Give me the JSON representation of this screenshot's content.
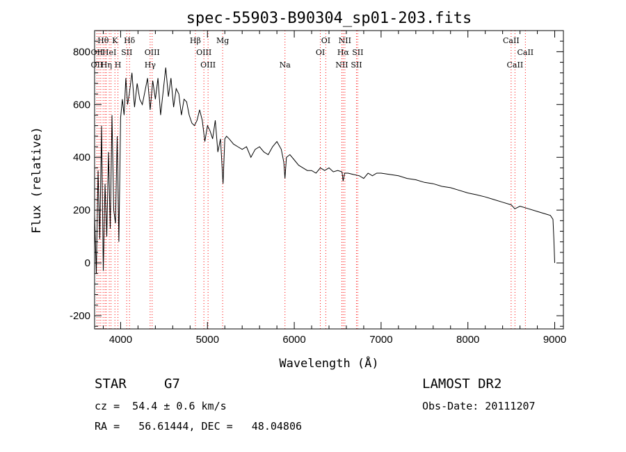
{
  "chart_data": {
    "type": "line",
    "title": "spec-55903-B90304_sp01-203.fits",
    "xlabel": "Wavelength (Å)",
    "ylabel": "Flux (relative)",
    "xlim": [
      3700,
      9100
    ],
    "ylim": [
      -250,
      880
    ],
    "x_ticks": [
      4000,
      5000,
      6000,
      7000,
      8000,
      9000
    ],
    "y_ticks": [
      -200,
      0,
      200,
      400,
      600,
      800
    ],
    "grid": false,
    "series": [
      {
        "x": [
          3700,
          3720,
          3740,
          3760,
          3780,
          3800,
          3820,
          3840,
          3860,
          3880,
          3900,
          3920,
          3940,
          3960,
          3980,
          4000,
          4020,
          4040,
          4060,
          4080,
          4100,
          4130,
          4160,
          4190,
          4220,
          4250,
          4280,
          4310,
          4340,
          4370,
          4400,
          4430,
          4460,
          4490,
          4520,
          4550,
          4580,
          4610,
          4640,
          4670,
          4700,
          4730,
          4760,
          4790,
          4820,
          4850,
          4880,
          4910,
          4940,
          4970,
          5000,
          5030,
          5060,
          5090,
          5120,
          5150,
          5180,
          5200,
          5220,
          5250,
          5300,
          5350,
          5400,
          5450,
          5500,
          5550,
          5600,
          5650,
          5700,
          5750,
          5800,
          5850,
          5880,
          5893,
          5910,
          5950,
          6000,
          6050,
          6100,
          6150,
          6200,
          6250,
          6300,
          6350,
          6400,
          6450,
          6500,
          6550,
          6563,
          6580,
          6620,
          6680,
          6750,
          6800,
          6850,
          6900,
          6950,
          7000,
          7100,
          7200,
          7300,
          7400,
          7500,
          7600,
          7700,
          7800,
          7900,
          8000,
          8100,
          8200,
          8300,
          8400,
          8500,
          8540,
          8600,
          8700,
          8800,
          8900,
          8950,
          8980,
          8990,
          9000
        ],
        "y": [
          180,
          -40,
          350,
          90,
          520,
          -30,
          300,
          100,
          420,
          130,
          560,
          200,
          150,
          480,
          80,
          550,
          620,
          560,
          700,
          600,
          640,
          720,
          590,
          680,
          620,
          600,
          650,
          700,
          580,
          690,
          620,
          700,
          560,
          650,
          740,
          630,
          700,
          590,
          660,
          640,
          560,
          620,
          610,
          560,
          530,
          520,
          540,
          580,
          540,
          460,
          520,
          500,
          470,
          540,
          420,
          470,
          300,
          470,
          480,
          470,
          450,
          440,
          430,
          440,
          400,
          430,
          440,
          420,
          410,
          440,
          460,
          430,
          380,
          320,
          400,
          410,
          390,
          370,
          360,
          350,
          350,
          340,
          360,
          350,
          360,
          345,
          350,
          345,
          310,
          340,
          340,
          335,
          330,
          320,
          340,
          330,
          340,
          340,
          335,
          330,
          320,
          315,
          305,
          300,
          290,
          285,
          275,
          265,
          258,
          250,
          240,
          230,
          220,
          205,
          215,
          205,
          195,
          185,
          180,
          165,
          90,
          0
        ]
      }
    ],
    "vertical_lines_x": [
      3727,
      3750,
      3771,
      3798,
      3820,
      3835,
      3869,
      3889,
      3934,
      3969,
      4070,
      4102,
      4340,
      4363,
      4861,
      4959,
      5007,
      5175,
      5893,
      6300,
      6363,
      6548,
      6563,
      6583,
      6716,
      6731,
      8498,
      8542,
      8662
    ],
    "line_labels": [
      {
        "x": 3798,
        "row": 1,
        "text": "Hθ"
      },
      {
        "x": 3934,
        "row": 1,
        "text": "K"
      },
      {
        "x": 4102,
        "row": 1,
        "text": "Hδ"
      },
      {
        "x": 3727,
        "row": 2,
        "text": "OII"
      },
      {
        "x": 3869,
        "row": 2,
        "text": "HeI"
      },
      {
        "x": 4070,
        "row": 2,
        "text": "SII"
      },
      {
        "x": 4363,
        "row": 2,
        "text": "OIII"
      },
      {
        "x": 3727,
        "row": 3,
        "text": "OII"
      },
      {
        "x": 3835,
        "row": 3,
        "text": "Hη"
      },
      {
        "x": 3969,
        "row": 3,
        "text": "H"
      },
      {
        "x": 4340,
        "row": 3,
        "text": "Hγ"
      },
      {
        "x": 4861,
        "row": 1,
        "text": "Hβ"
      },
      {
        "x": 5175,
        "row": 1,
        "text": "Mg"
      },
      {
        "x": 4959,
        "row": 2,
        "text": "OIII"
      },
      {
        "x": 5007,
        "row": 3,
        "text": "OIII"
      },
      {
        "x": 5893,
        "row": 3,
        "text": "Na"
      },
      {
        "x": 6363,
        "row": 1,
        "text": "OI"
      },
      {
        "x": 6300,
        "row": 2,
        "text": "OI"
      },
      {
        "x": 6583,
        "row": 1,
        "text": "NII"
      },
      {
        "x": 6563,
        "row": 2,
        "text": "Hα"
      },
      {
        "x": 6731,
        "row": 2,
        "text": "SII"
      },
      {
        "x": 6548,
        "row": 3,
        "text": "NII"
      },
      {
        "x": 6716,
        "row": 3,
        "text": "SII"
      },
      {
        "x": 8498,
        "row": 1,
        "text": "CaII"
      },
      {
        "x": 8662,
        "row": 2,
        "text": "CaII"
      },
      {
        "x": 8542,
        "row": 3,
        "text": "CaII"
      }
    ]
  },
  "info": {
    "object_class": "STAR",
    "subclass": "G7",
    "survey": "LAMOST DR2",
    "redshift": "cz =  54.4 ± 0.6 km/s",
    "obs_date": "Obs-Date: 20111207",
    "coords": "RA =   56.61444, DEC =   48.04806"
  },
  "colors": {
    "line": "#000000",
    "marker_lines": "#ff0000"
  }
}
